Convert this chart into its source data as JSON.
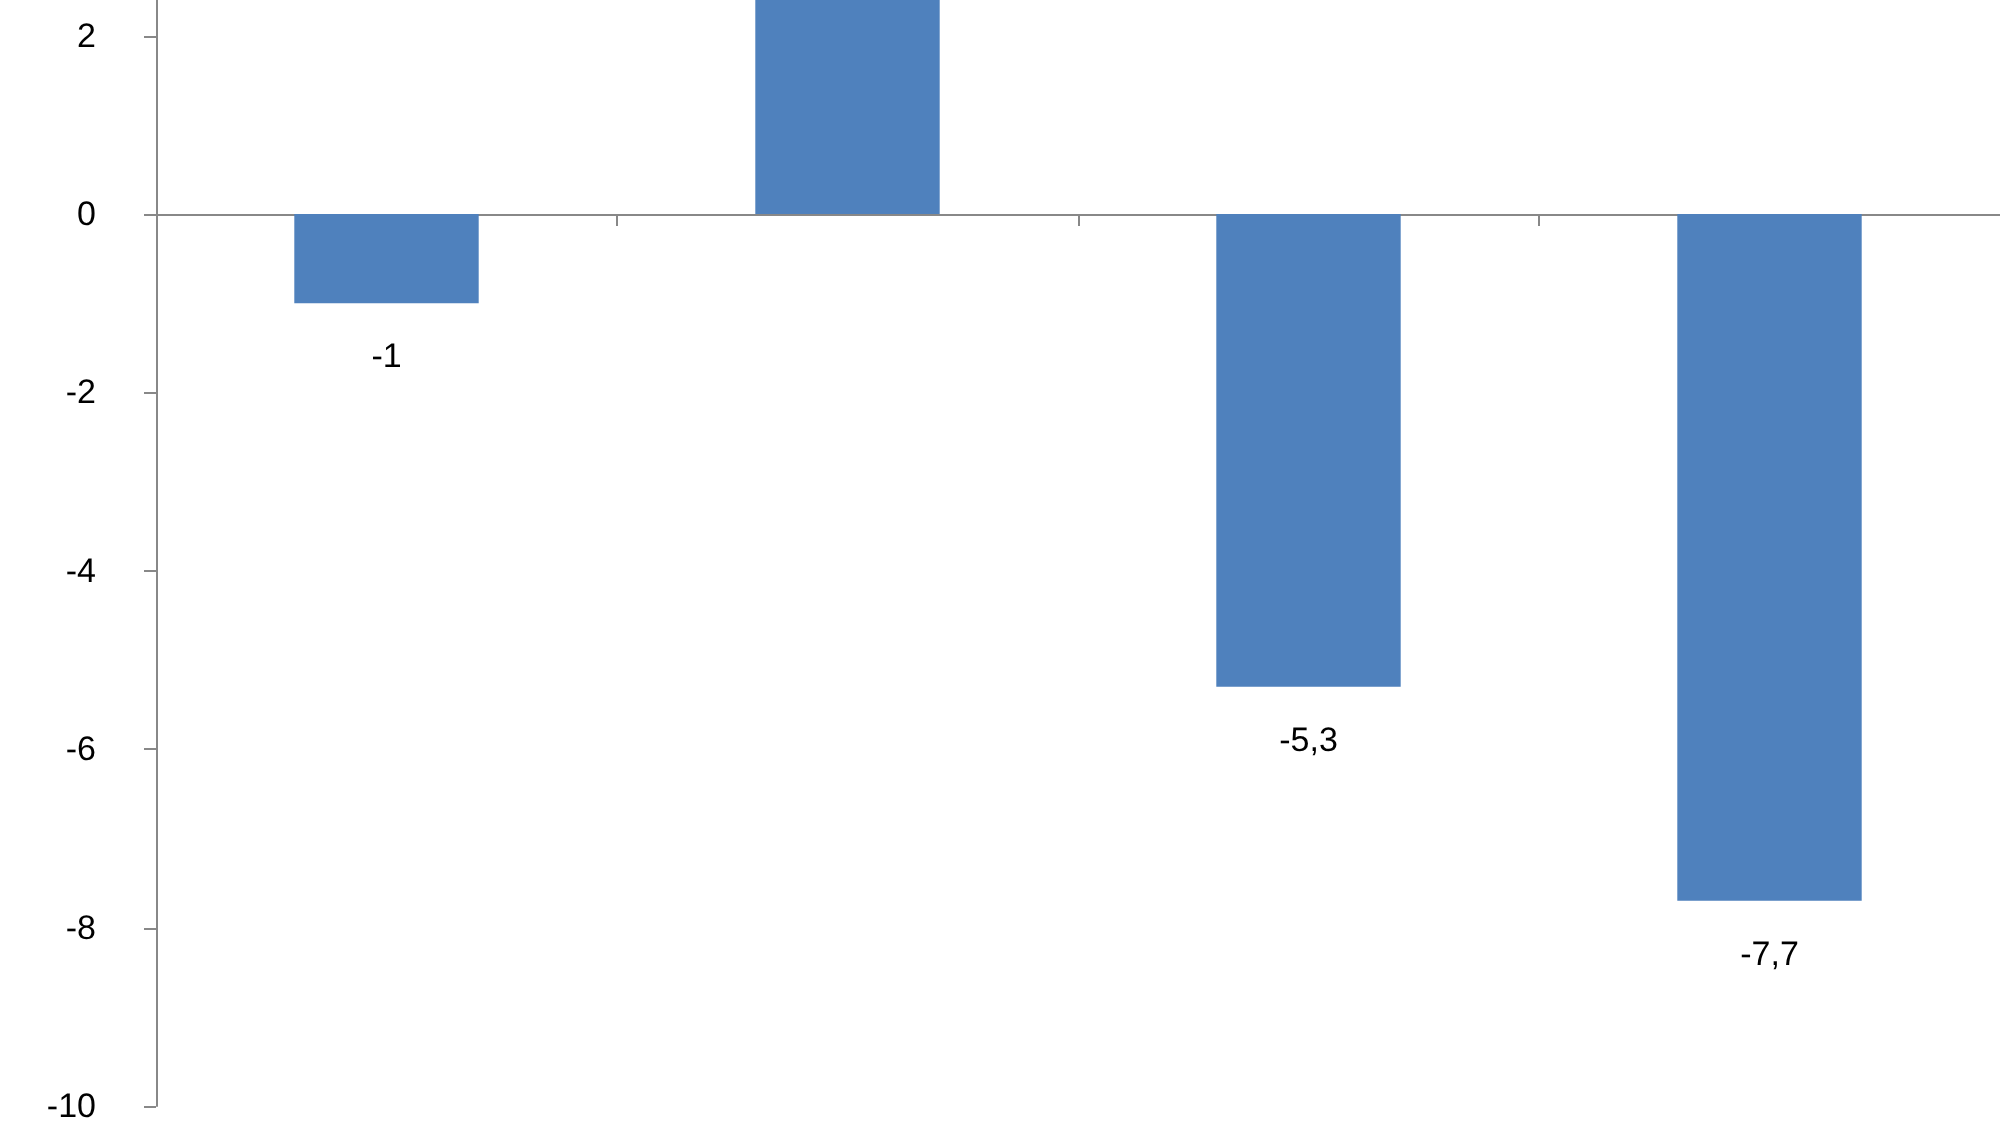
{
  "chart_data": {
    "type": "bar",
    "categories": [
      null,
      null,
      null,
      null
    ],
    "values": [
      -1,
      2.4,
      -5.3,
      -7.7
    ],
    "value_labels": [
      "-1",
      null,
      "-5,3",
      "-7,7"
    ],
    "color": "#4f81bd",
    "ylim": [
      -10,
      2.4
    ],
    "yticks": [
      -10,
      -8,
      -6,
      -4,
      -2,
      0,
      2
    ]
  }
}
